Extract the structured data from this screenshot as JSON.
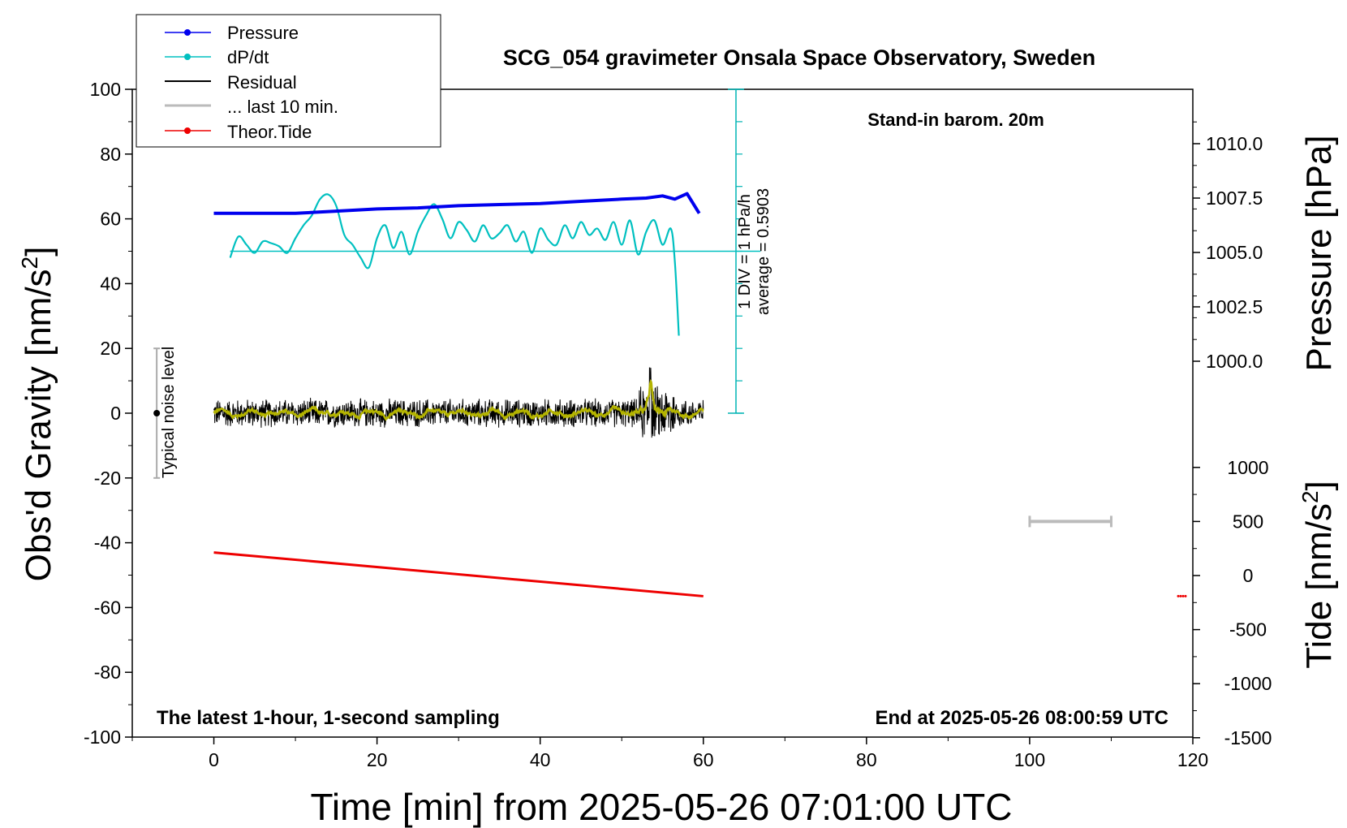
{
  "chart_data": {
    "type": "line",
    "title": "SCG_054 gravimeter Onsala Space Observatory, Sweden",
    "xlabel": "Time [min] from 2025-05-26 07:01:00 UTC",
    "ylabel_left_main": "Obs'd Gravity [nm/s",
    "ylabel_left_sup": "2",
    "ylabel_left_end": "]",
    "ylabel_right_top": "Pressure [hPa]",
    "ylabel_right_bottom_main": "Tide [nm/s",
    "ylabel_right_bottom_sup": "2",
    "ylabel_right_bottom_end": "]",
    "xlim": [
      -10,
      120
    ],
    "ylim": [
      -100,
      100
    ],
    "x_ticks": [
      "0",
      "20",
      "40",
      "60",
      "80",
      "100",
      "120"
    ],
    "y_ticks": [
      "100",
      "80",
      "60",
      "40",
      "20",
      "0",
      "-20",
      "-40",
      "-60",
      "-80",
      "-100"
    ],
    "pressure_axis": {
      "ticks": [
        "1010.0",
        "1007.5",
        "1005.0",
        "1002.5",
        "1000.0"
      ],
      "tick_values": [
        1010.0,
        1007.5,
        1005.0,
        1002.5,
        1000.0
      ]
    },
    "tide_axis": {
      "ticks": [
        "1000",
        "500",
        "0",
        "-500",
        "-1000",
        "-1500"
      ],
      "tick_values": [
        1000,
        500,
        0,
        -500,
        -1000,
        -1500
      ]
    },
    "annotations": {
      "barometer": "Stand-in barom. 20m",
      "sampling": "The latest 1-hour, 1-second sampling",
      "end_time": "End at 2025-05-26 08:00:59 UTC",
      "noise": "Typical noise level",
      "dpdt_scale_line1": "1 DIV = 1 hPa/h",
      "dpdt_scale_line2": "average = 0.5903"
    },
    "legend": {
      "position": "top-left",
      "entries": [
        "Pressure",
        "dP/dt",
        "Residual",
        "... last 10 min.",
        "Theor.Tide"
      ]
    },
    "series": [
      {
        "name": "Pressure",
        "color": "#0000ee",
        "unit": "hPa",
        "x": [
          0,
          5,
          10,
          15,
          20,
          25,
          30,
          35,
          40,
          45,
          50,
          53,
          55,
          56.5,
          58,
          59.5
        ],
        "values": [
          1006.8,
          1006.8,
          1006.8,
          1006.9,
          1007.0,
          1007.05,
          1007.15,
          1007.2,
          1007.25,
          1007.35,
          1007.45,
          1007.5,
          1007.6,
          1007.45,
          1007.7,
          1006.8
        ]
      },
      {
        "name": "dP/dt",
        "color": "#00c0c0",
        "unit": "hPa/h",
        "baseline_gravity": 50,
        "x": [
          2,
          3,
          4,
          5,
          6,
          7,
          8,
          9,
          10,
          11,
          12,
          13,
          14,
          15,
          16,
          17,
          18,
          19,
          20,
          21,
          22,
          23,
          24,
          25,
          26,
          27,
          28,
          29,
          30,
          31,
          32,
          33,
          34,
          35,
          36,
          37,
          38,
          39,
          40,
          41,
          42,
          43,
          44,
          45,
          46,
          47,
          48,
          49,
          50,
          51,
          52,
          53,
          54,
          55,
          56,
          56.5,
          57
        ],
        "values": [
          -0.2,
          0.45,
          0.2,
          -0.05,
          0.3,
          0.25,
          0.15,
          -0.05,
          0.4,
          0.8,
          1.1,
          1.6,
          1.75,
          1.4,
          0.5,
          0.2,
          -0.2,
          -0.5,
          0.4,
          0.8,
          0.1,
          0.6,
          -0.1,
          0.6,
          1.1,
          1.45,
          1.0,
          0.4,
          0.9,
          0.65,
          0.3,
          0.8,
          0.4,
          0.55,
          0.8,
          0.3,
          0.6,
          -0.05,
          0.7,
          0.35,
          0.2,
          0.8,
          0.4,
          0.9,
          0.5,
          0.7,
          0.35,
          0.9,
          0.2,
          0.95,
          -0.1,
          0.6,
          0.95,
          0.2,
          0.7,
          -0.3,
          -2.6
        ]
      },
      {
        "name": "Residual",
        "color": "#000000",
        "unit": "nm/s2",
        "x_range": [
          0,
          60
        ],
        "noise_amplitude": 4.5,
        "spike": {
          "x": 53.5,
          "value": 14
        }
      },
      {
        "name": "... last 10 min.",
        "color": "#b4b400",
        "unit": "nm/s2",
        "x_range": [
          0,
          60
        ]
      },
      {
        "name": "Theor.Tide",
        "color": "#ee0000",
        "unit": "nm/s2",
        "x": [
          0,
          60
        ],
        "values": [
          -43,
          -56.5
        ]
      }
    ],
    "noise_bar": {
      "x": -7,
      "range": [
        -20,
        20
      ]
    },
    "scale_bar": {
      "x": [
        100,
        110
      ],
      "tide_value": 500
    }
  }
}
